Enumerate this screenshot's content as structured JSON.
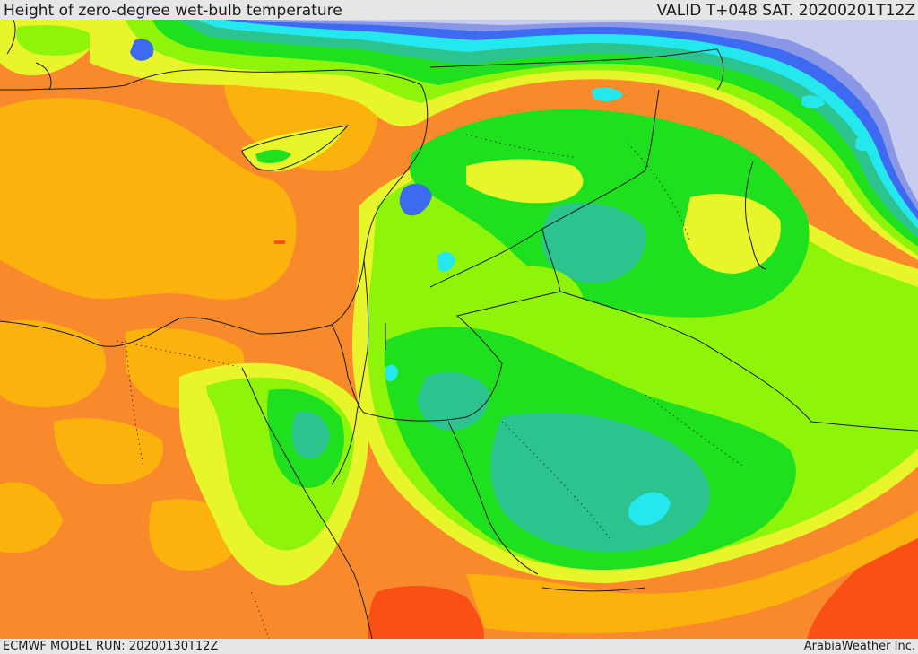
{
  "header": {
    "title": "Height of zero-degree wet-bulb temperature",
    "valid": "VALID T+048 SAT. 20200201T12Z"
  },
  "footer": {
    "model_run": "ECMWF MODEL RUN: 20200130T12Z",
    "brand": "ArabiaWeather Inc."
  },
  "map": {
    "palette": {
      "snow_lavender": "#c8cdf0",
      "violet": "#8a96e6",
      "blue": "#3d6af0",
      "cyan": "#25e8ef",
      "teal": "#2bc48e",
      "green": "#1fe01f",
      "lime": "#8ef50a",
      "yellow": "#e8f52a",
      "amber": "#fbb20c",
      "orange": "#f98a2c",
      "red_orange": "#fa5014",
      "border": "#1a1a1a"
    }
  }
}
